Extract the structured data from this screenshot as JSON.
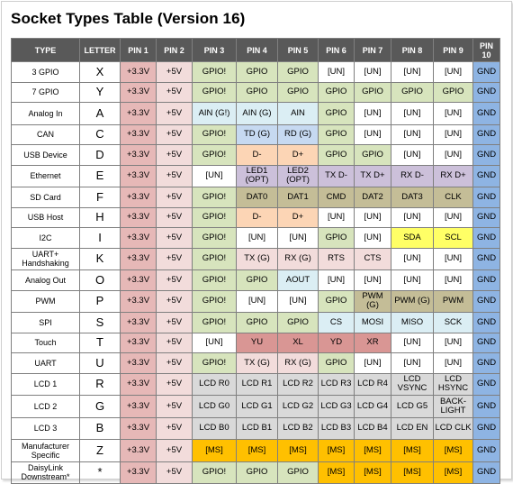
{
  "title": "Socket Types Table (Version 16)",
  "headers": [
    "TYPE",
    "LETTER",
    "PIN 1",
    "PIN 2",
    "PIN 3",
    "PIN 4",
    "PIN 5",
    "PIN 6",
    "PIN 7",
    "PIN 8",
    "PIN 9",
    "PIN 10"
  ],
  "colors": {
    "header": "#595959",
    "pin1": "#e6b8b7",
    "gpio": "#d7e4bd",
    "gnd": "#8eb4e3",
    "lcd": "#d9d9d9",
    "ms": "#ffc000",
    "sd": "#c4bd97",
    "i2c": "#ffff66",
    "usb": "#fcd5b5"
  },
  "rows": [
    {
      "type": "3 GPIO",
      "letter": "X",
      "pins": [
        "+3.3V",
        "+5V",
        "GPIO!",
        "GPIO",
        "GPIO",
        "[UN]",
        "[UN]",
        "[UN]",
        "[UN]",
        "GND"
      ]
    },
    {
      "type": "7 GPIO",
      "letter": "Y",
      "pins": [
        "+3.3V",
        "+5V",
        "GPIO!",
        "GPIO",
        "GPIO",
        "GPIO",
        "GPIO",
        "GPIO",
        "GPIO",
        "GND"
      ]
    },
    {
      "type": "Analog In",
      "letter": "A",
      "pins": [
        "+3.3V",
        "+5V",
        "AIN (G!)",
        "AIN (G)",
        "AIN",
        "GPIO",
        "[UN]",
        "[UN]",
        "[UN]",
        "GND"
      ]
    },
    {
      "type": "CAN",
      "letter": "C",
      "pins": [
        "+3.3V",
        "+5V",
        "GPIO!",
        "TD (G)",
        "RD (G)",
        "GPIO",
        "[UN]",
        "[UN]",
        "[UN]",
        "GND"
      ]
    },
    {
      "type": "USB Device",
      "letter": "D",
      "pins": [
        "+3.3V",
        "+5V",
        "GPIO!",
        "D-",
        "D+",
        "GPIO",
        "GPIO",
        "[UN]",
        "[UN]",
        "GND"
      ]
    },
    {
      "type": "Ethernet",
      "letter": "E",
      "pins": [
        "+3.3V",
        "+5V",
        "[UN]",
        "LED1 (OPT)",
        "LED2 (OPT)",
        "TX D-",
        "TX D+",
        "RX D-",
        "RX D+",
        "GND"
      ]
    },
    {
      "type": "SD Card",
      "letter": "F",
      "pins": [
        "+3.3V",
        "+5V",
        "GPIO!",
        "DAT0",
        "DAT1",
        "CMD",
        "DAT2",
        "DAT3",
        "CLK",
        "GND"
      ]
    },
    {
      "type": "USB Host",
      "letter": "H",
      "pins": [
        "+3.3V",
        "+5V",
        "GPIO!",
        "D-",
        "D+",
        "[UN]",
        "[UN]",
        "[UN]",
        "[UN]",
        "GND"
      ]
    },
    {
      "type": "I2C",
      "letter": "I",
      "pins": [
        "+3.3V",
        "+5V",
        "GPIO!",
        "[UN]",
        "[UN]",
        "GPIO",
        "[UN]",
        "SDA",
        "SCL",
        "GND"
      ]
    },
    {
      "type": "UART+ Handshaking",
      "letter": "K",
      "pins": [
        "+3.3V",
        "+5V",
        "GPIO!",
        "TX (G)",
        "RX (G)",
        "RTS",
        "CTS",
        "[UN]",
        "[UN]",
        "GND"
      ]
    },
    {
      "type": "Analog Out",
      "letter": "O",
      "pins": [
        "+3.3V",
        "+5V",
        "GPIO!",
        "GPIO",
        "AOUT",
        "[UN]",
        "[UN]",
        "[UN]",
        "[UN]",
        "GND"
      ]
    },
    {
      "type": "PWM",
      "letter": "P",
      "pins": [
        "+3.3V",
        "+5V",
        "GPIO!",
        "[UN]",
        "[UN]",
        "GPIO",
        "PWM (G)",
        "PWM (G)",
        "PWM",
        "GND"
      ]
    },
    {
      "type": "SPI",
      "letter": "S",
      "pins": [
        "+3.3V",
        "+5V",
        "GPIO!",
        "GPIO",
        "GPIO",
        "CS",
        "MOSI",
        "MISO",
        "SCK",
        "GND"
      ]
    },
    {
      "type": "Touch",
      "letter": "T",
      "pins": [
        "+3.3V",
        "+5V",
        "[UN]",
        "YU",
        "XL",
        "YD",
        "XR",
        "[UN]",
        "[UN]",
        "GND"
      ]
    },
    {
      "type": "UART",
      "letter": "U",
      "pins": [
        "+3.3V",
        "+5V",
        "GPIO!",
        "TX (G)",
        "RX (G)",
        "GPIO",
        "[UN]",
        "[UN]",
        "[UN]",
        "GND"
      ]
    },
    {
      "type": "LCD 1",
      "letter": "R",
      "pins": [
        "+3.3V",
        "+5V",
        "LCD R0",
        "LCD R1",
        "LCD R2",
        "LCD R3",
        "LCD R4",
        "LCD VSYNC",
        "LCD HSYNC",
        "GND"
      ]
    },
    {
      "type": "LCD 2",
      "letter": "G",
      "pins": [
        "+3.3V",
        "+5V",
        "LCD G0",
        "LCD G1",
        "LCD G2",
        "LCD G3",
        "LCD G4",
        "LCD G5",
        "BACK- LIGHT",
        "GND"
      ]
    },
    {
      "type": "LCD 3",
      "letter": "B",
      "pins": [
        "+3.3V",
        "+5V",
        "LCD B0",
        "LCD B1",
        "LCD B2",
        "LCD B3",
        "LCD B4",
        "LCD EN",
        "LCD CLK",
        "GND"
      ]
    },
    {
      "type": "Manufacturer Specific",
      "letter": "Z",
      "pins": [
        "+3.3V",
        "+5V",
        "[MS]",
        "[MS]",
        "[MS]",
        "[MS]",
        "[MS]",
        "[MS]",
        "[MS]",
        "GND"
      ]
    },
    {
      "type": "DaisyLink Downstream*",
      "letter": "*",
      "pins": [
        "+3.3V",
        "+5V",
        "GPIO!",
        "GPIO",
        "GPIO",
        "[MS]",
        "[MS]",
        "[MS]",
        "[MS]",
        "GND"
      ]
    }
  ]
}
